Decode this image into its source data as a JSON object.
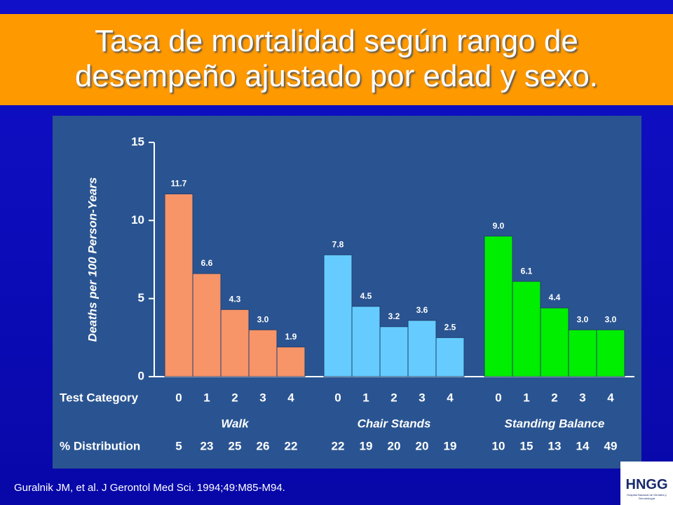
{
  "title_lines": [
    "Tasa de mortalidad según rango de",
    "desempeño ajustado por edad y sexo."
  ],
  "chart_data": {
    "type": "bar",
    "y_label": "Deaths per 100 Person-Years",
    "ylim": [
      0,
      15
    ],
    "yticks": [
      0,
      5,
      10,
      15
    ],
    "category_row_label": "Test Category",
    "distribution_row_label": "% Distribution",
    "groups": [
      {
        "name": "Walk",
        "color": "#f79468",
        "categories": [
          "0",
          "1",
          "2",
          "3",
          "4"
        ],
        "values": [
          11.7,
          6.6,
          4.3,
          3.0,
          1.9
        ],
        "value_labels": [
          "11.7",
          "6.6",
          "4.3",
          "3.0",
          "1.9"
        ],
        "distribution": [
          5,
          23,
          25,
          26,
          22
        ]
      },
      {
        "name": "Chair Stands",
        "color": "#66ccff",
        "categories": [
          "0",
          "1",
          "2",
          "3",
          "4"
        ],
        "values": [
          7.8,
          4.5,
          3.2,
          3.6,
          2.5
        ],
        "value_labels": [
          "7.8",
          "4.5",
          "3.2",
          "3.6",
          "2.5"
        ],
        "distribution": [
          22,
          19,
          20,
          20,
          19
        ]
      },
      {
        "name": "Standing Balance",
        "color": "#00ee00",
        "categories": [
          "0",
          "1",
          "2",
          "3",
          "4"
        ],
        "values": [
          9.0,
          6.1,
          4.4,
          3.0,
          3.0
        ],
        "value_labels": [
          "9.0",
          "6.1",
          "4.4",
          "3.0",
          "3.0"
        ],
        "distribution": [
          10,
          15,
          13,
          14,
          49
        ]
      }
    ]
  },
  "citation": "Guralnik JM, et al. J Gerontol Med Sci. 1994;49:M85-M94.",
  "logo": {
    "text": "HNGG",
    "subtitle": "Hospital Nacional de Geriatría y Gerontología"
  }
}
